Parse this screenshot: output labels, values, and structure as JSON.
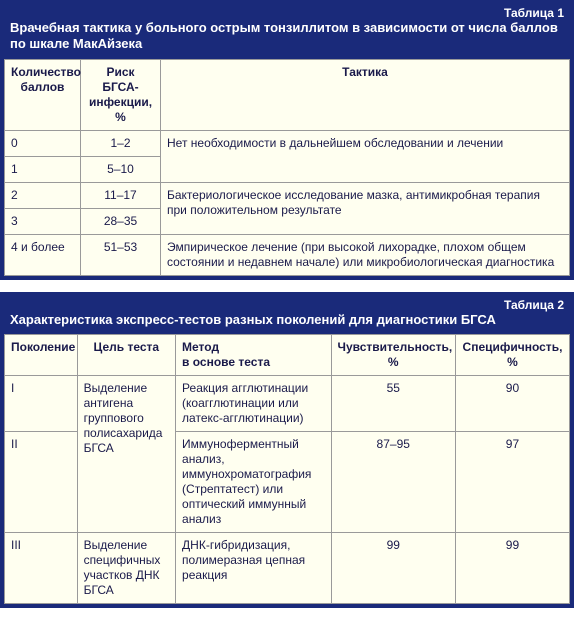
{
  "colors": {
    "frame": "#1a2a7a",
    "frame_text": "#ffffff",
    "cell_bg": "#fffff0",
    "cell_border": "#9a9a9a",
    "cell_text": "#1a1a4a"
  },
  "typography": {
    "base_font": "Arial, Helvetica, sans-serif",
    "base_size_pt": 9,
    "title_size_pt": 10,
    "title_weight": "bold"
  },
  "table1": {
    "label": "Таблица 1",
    "title": "Врачебная тактика у больного острым тонзиллитом в зависимости от числа баллов по шкале МакАйзека",
    "columns": [
      "Количество баллов",
      "Риск БГСА-инфекции, %",
      "Тактика"
    ],
    "rows": [
      {
        "score": "0",
        "risk": "1–2"
      },
      {
        "score": "1",
        "risk": "5–10"
      },
      {
        "score": "2",
        "risk": "11–17"
      },
      {
        "score": "3",
        "risk": "28–35"
      },
      {
        "score": "4 и более",
        "risk": "51–53"
      }
    ],
    "tactics": [
      {
        "rowspan": 2,
        "text": "Нет необходимости в дальнейшем обследовании и лечении"
      },
      {
        "rowspan": 2,
        "text": "Бактериологическое исследование мазка, антимикробная терапия при положительном результате"
      },
      {
        "rowspan": 1,
        "text": "Эмпирическое лечение (при высокой лихорадке, плохом общем состоянии и недавнем начале) или микробиологическая диагностика"
      }
    ]
  },
  "table2": {
    "label": "Таблица 2",
    "title": "Характеристика экспресс-тестов разных поколений для диагностики БГСА",
    "columns": [
      "Поколение",
      "Цель теста",
      "Метод в основе теста",
      "Чувствительность, %",
      "Специфичность, %"
    ],
    "col2_header_line1": "Метод",
    "col2_header_line2": "в основе теста",
    "rows": [
      {
        "gen": "I",
        "target": "Выделение антигена группового полисахарида БГСА",
        "target_rowspan": 2,
        "method": "Реакция агглютинации (коагглютинации или латекс-агглютинации)",
        "sens": "55",
        "spec": "90"
      },
      {
        "gen": "II",
        "method": "Иммуноферментный анализ, иммунохроматография (Стрептатест) или оптический иммунный анализ",
        "sens": "87–95",
        "spec": "97"
      },
      {
        "gen": "III",
        "target": "Выделение специфичных участков ДНК БГСА",
        "target_rowspan": 1,
        "method": "ДНК-гибридизация, полимеразная цепная реакция",
        "sens": "99",
        "spec": "99"
      }
    ]
  }
}
